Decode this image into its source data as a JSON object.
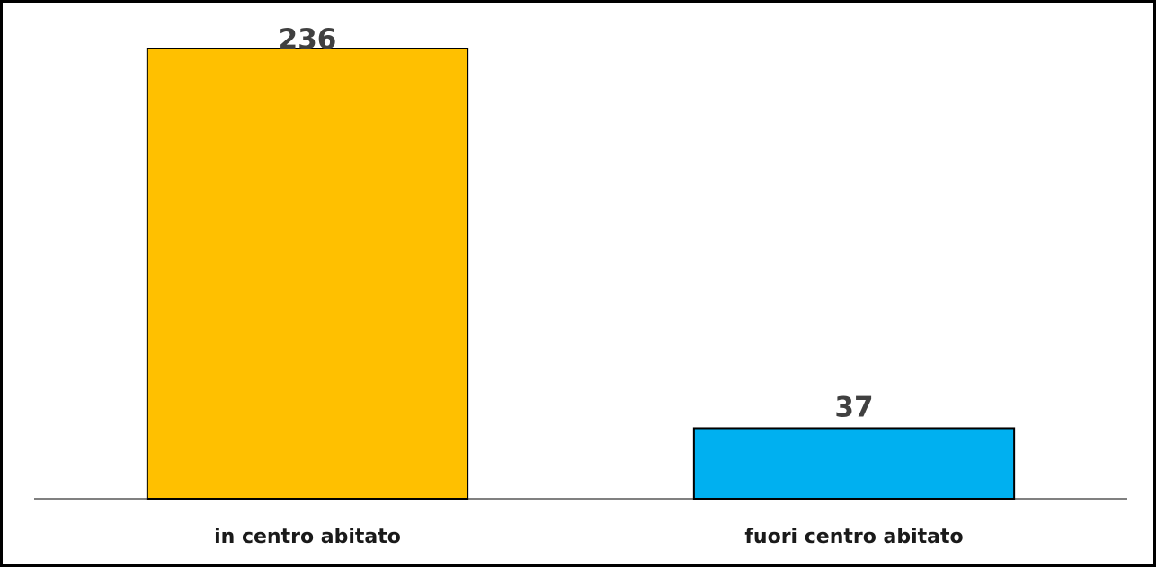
{
  "chart_data": {
    "type": "bar",
    "categories": [
      "in centro abitato",
      "fuori centro abitato"
    ],
    "values": [
      236,
      37
    ],
    "colors": [
      "#FFC000",
      "#00B0F0"
    ]
  }
}
